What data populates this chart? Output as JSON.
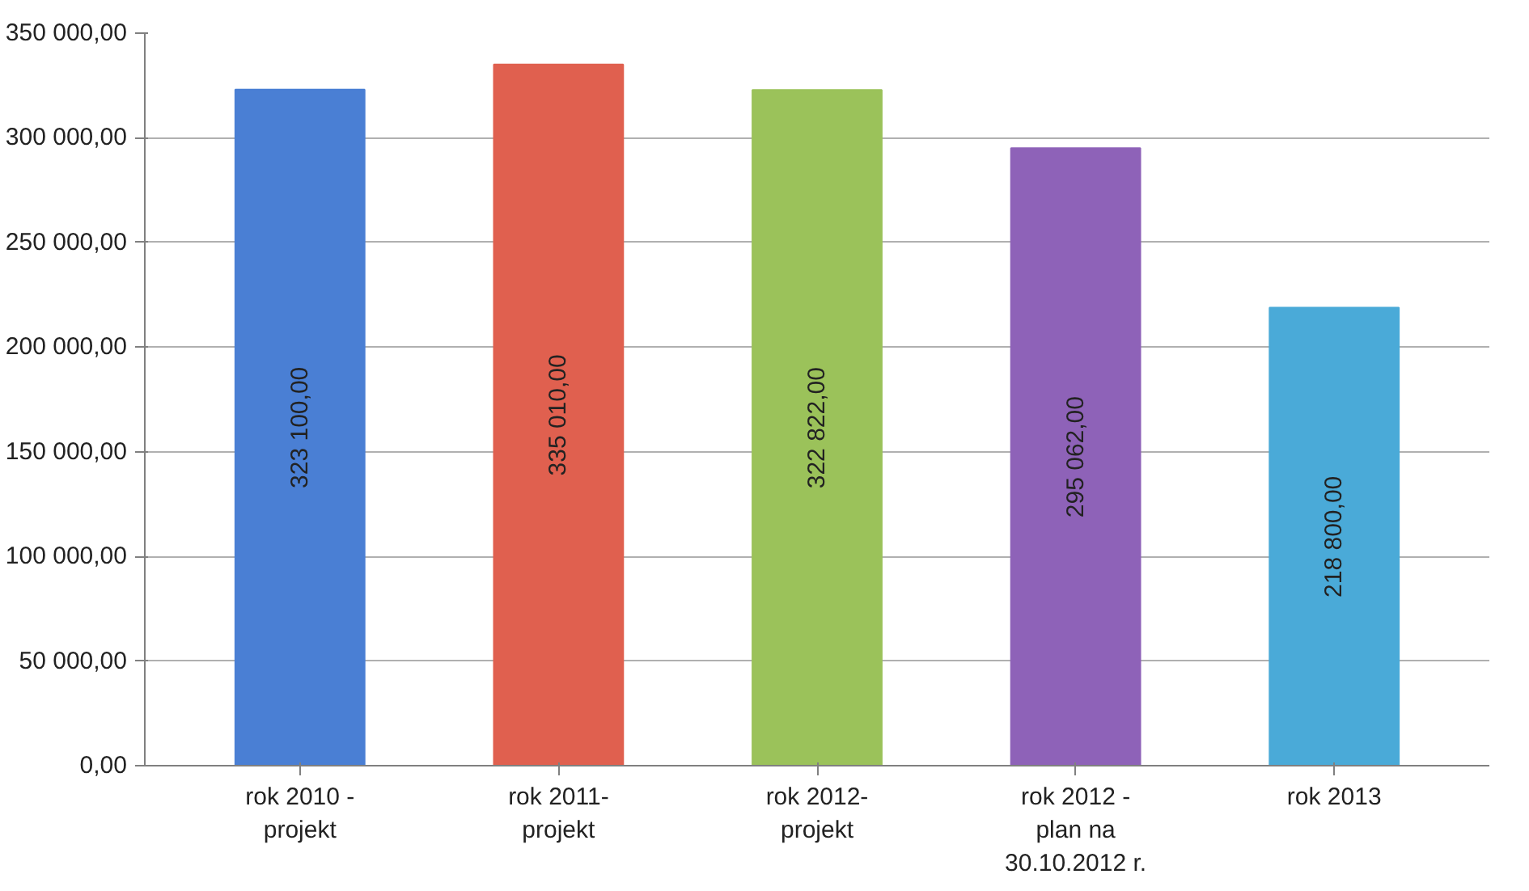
{
  "chart_data": {
    "type": "bar",
    "categories": [
      "rok 2010 -\nprojekt",
      "rok 2011-\nprojekt",
      "rok 2012-\nprojekt",
      "rok 2012 -\nplan na\n30.10.2012 r.",
      "rok 2013"
    ],
    "values": [
      323100,
      335010,
      322822,
      295062,
      218800
    ],
    "colors": [
      "#4a7fd4",
      "#e0604f",
      "#9bc25a",
      "#8e62b8",
      "#4aaad8"
    ],
    "value_labels": [
      "323 100,00",
      "335 010,00",
      "322 822,00",
      "295 062,00",
      "218 800,00"
    ],
    "ylim": [
      0,
      350000
    ],
    "yticks": [
      {
        "value": 0,
        "label": "0,00"
      },
      {
        "value": 50000,
        "label": "50 000,00"
      },
      {
        "value": 100000,
        "label": "100 000,00"
      },
      {
        "value": 150000,
        "label": "150 000,00"
      },
      {
        "value": 200000,
        "label": "200 000,00"
      },
      {
        "value": 250000,
        "label": "250 000,00"
      },
      {
        "value": 300000,
        "label": "300 000,00"
      },
      {
        "value": 350000,
        "label": "350 000,00"
      }
    ],
    "grid": "y"
  }
}
